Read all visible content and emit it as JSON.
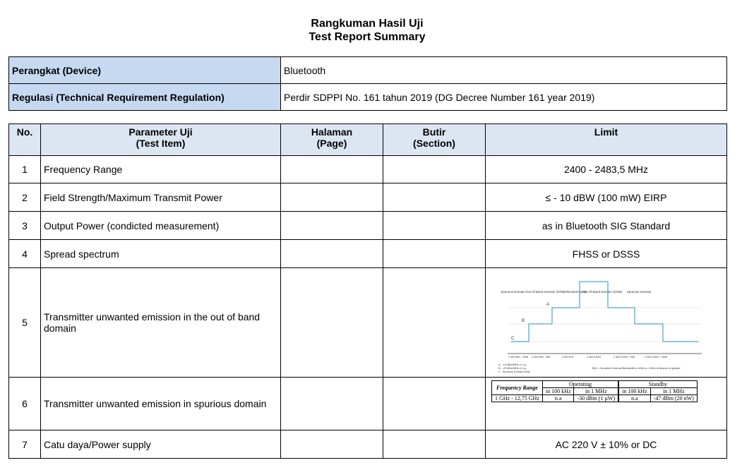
{
  "title": {
    "line1": "Rangkuman Hasil Uji",
    "line2": "Test Report Summary"
  },
  "device_table": {
    "rows": [
      [
        "Perangkat (Device)",
        "Bluetooth"
      ],
      [
        "Regulasi (Technical Requirement Regulation)",
        "Perdir SDPPI No. 161 tahun 2019 (DG Decree Number 161 year 2019)"
      ]
    ]
  },
  "table": {
    "header": [
      [
        "No."
      ],
      [
        "Parameter Uji",
        "(Test Item)"
      ],
      [
        "Halaman",
        "(Page)"
      ],
      [
        "Butir",
        "(Section)"
      ],
      [
        "Limit"
      ]
    ],
    "rows": [
      {
        "no": "1",
        "item": "Frequency Range",
        "limit": "2400 - 2483,5 MHz"
      },
      {
        "no": "2",
        "item": "Field Strength/Maximum Transmit Power",
        "limit": "≤ - 10 dBW (100 mW) EIRP"
      },
      {
        "no": "3",
        "item": "Output Power (condicted measurement)",
        "limit": "as in Bluetooth SIG Standard"
      },
      {
        "no": "4",
        "item": "Spread spectrum",
        "limit": "FHSS or DSSS"
      },
      {
        "no": "5",
        "item": "Transmitter unwanted emission in the out of band domain",
        "limit_figure": {
          "domains": [
            "Spurious Domain",
            "Out Of Band Domain (OOB)",
            "Allocated Band",
            "Out Of Band Domain (OOB)",
            "Spurious Domain"
          ],
          "levels": [
            "A",
            "B",
            "C"
          ],
          "x_labels": [
            "2 400 MHz - 2BW",
            "2 400 MHz - BW",
            "2 400 MHz",
            "2 483,5 MHz",
            "2 483,5 MHz + BW",
            "2 483,5 MHz + 2BW"
          ],
          "notes": [
            "A : -10 dBm/MHz e.i.r.p.",
            "B : -20 dBm/MHz e.i.r.p.",
            "C : Spurious Domain limits"
          ],
          "bw_note": "BW = Occupied Channel Bandwidth in MHz or 1 MHz whichever is greater"
        }
      },
      {
        "no": "6",
        "item": "Transmitter unwanted emission in spurious domain",
        "limit_table": {
          "freq_header": "Frequency Range",
          "groups": [
            "Operating",
            "Standby"
          ],
          "sub": [
            "in 100 kHz",
            "in 1 MHz",
            "in 100 kHz",
            "in 1 MHz"
          ],
          "row": [
            "1 GHz - 12,75 GHz",
            "n.a",
            "-30 dBm (1 µW)",
            "n.a",
            "-47 dBm (20 nW)"
          ]
        }
      },
      {
        "no": "7",
        "item": "Catu daya/Power supply",
        "limit": "AC 220 V ± 10% or DC"
      }
    ]
  }
}
